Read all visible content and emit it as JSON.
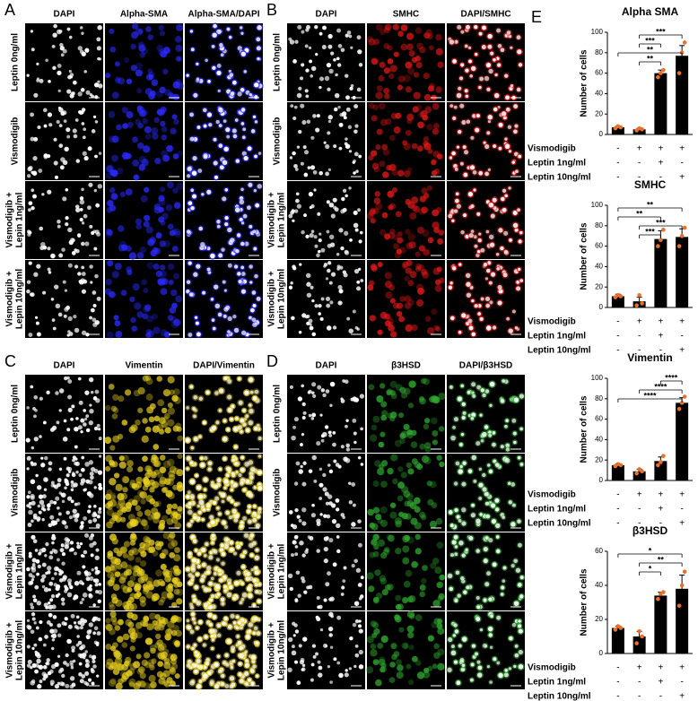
{
  "panels": [
    {
      "letter": "A",
      "marker_color": "#2a2aff",
      "columns": [
        "DAPI",
        "Alpha-SMA",
        "Alpha-SMA/DAPI"
      ],
      "rows": [
        [
          "Leptin 0ng/ml"
        ],
        [
          "Vismodigib"
        ],
        [
          "Vismodigib +",
          "Lepin 1ng/ml"
        ],
        [
          "Vismodigib +",
          "Lepin 10ng/ml"
        ]
      ]
    },
    {
      "letter": "B",
      "marker_color": "#e01818",
      "columns": [
        "DAPI",
        "SMHC",
        "DAPI/SMHC"
      ],
      "rows": [
        [
          "Leptin 0ng/ml"
        ],
        [
          "Vismodigib"
        ],
        [
          "Vismodigib +",
          "Lepin 1ng/ml"
        ],
        [
          "Vismodigib +",
          "Lepin 10ng/ml"
        ]
      ]
    },
    {
      "letter": "C",
      "marker_color": "#e8d020",
      "columns": [
        "DAPI",
        "Vimentin",
        "DAPI/Vimentin"
      ],
      "rows": [
        [
          "Leptin 0ng/ml"
        ],
        [
          "Vismodigib"
        ],
        [
          "Vismodigib +",
          "Lepin 1ng/ml"
        ],
        [
          "Vismodigib +",
          "Lepin 10ng/ml"
        ]
      ]
    },
    {
      "letter": "D",
      "marker_color": "#2fa82f",
      "columns": [
        "DAPI",
        "β3HSD",
        "DAPI/β3HSD"
      ],
      "rows": [
        [
          "Leptin 0ng/ml"
        ],
        [
          "Vismodigib"
        ],
        [
          "Vismodigib +",
          "Lepin 1ng/ml"
        ],
        [
          "Vismodigib +",
          "Lepin 10ng/ml"
        ]
      ]
    }
  ],
  "panel_e": {
    "letter": "E"
  },
  "chart_data": [
    {
      "type": "bar",
      "title": "Alpha SMA",
      "y_label": "Number of cells",
      "color": "#000000",
      "point_color": "#e8702a",
      "ylim": [
        0,
        100
      ],
      "yticks": [
        0,
        20,
        40,
        60,
        80,
        100
      ],
      "values": [
        7,
        5,
        60,
        77
      ],
      "errors": [
        1,
        1,
        3,
        10
      ],
      "points": [
        [
          6,
          8,
          7
        ],
        [
          4,
          6,
          5
        ],
        [
          56,
          60,
          63
        ],
        [
          60,
          80,
          90
        ]
      ],
      "conditions": [
        {
          "label": "Vismodigib",
          "signs": [
            "-",
            "+",
            "+",
            "+"
          ]
        },
        {
          "label": "Leptin 1ng/ml",
          "signs": [
            "-",
            "-",
            "+",
            "-"
          ]
        },
        {
          "label": "Leptin 10ng/ml",
          "signs": [
            "-",
            "-",
            "-",
            "+"
          ]
        }
      ],
      "brackets": [
        {
          "label": "***",
          "from": 1,
          "to": 3
        },
        {
          "label": "***",
          "from": 1,
          "to": 2
        },
        {
          "label": "**",
          "from": 0,
          "to": 3
        },
        {
          "label": "**",
          "from": 1,
          "to": 2
        }
      ]
    },
    {
      "type": "bar",
      "title": "SMHC",
      "y_label": "Number of cells",
      "color": "#000000",
      "point_color": "#e8702a",
      "ylim": [
        0,
        100
      ],
      "yticks": [
        0,
        20,
        40,
        60,
        80,
        100
      ],
      "values": [
        11,
        6,
        67,
        69
      ],
      "errors": [
        2,
        4,
        8,
        8
      ],
      "points": [
        [
          10,
          12,
          11
        ],
        [
          2,
          12,
          4
        ],
        [
          60,
          66,
          76
        ],
        [
          60,
          70,
          78
        ]
      ],
      "conditions": [
        {
          "label": "Vismodigib",
          "signs": [
            "-",
            "+",
            "+",
            "+"
          ]
        },
        {
          "label": "Leptin 1ng/ml",
          "signs": [
            "-",
            "-",
            "+",
            "-"
          ]
        },
        {
          "label": "Leptin 10ng/ml",
          "signs": [
            "-",
            "-",
            "-",
            "+"
          ]
        }
      ],
      "brackets": [
        {
          "label": "**",
          "from": 0,
          "to": 3
        },
        {
          "label": "**",
          "from": 0,
          "to": 2
        },
        {
          "label": "***",
          "from": 1,
          "to": 3
        },
        {
          "label": "***",
          "from": 1,
          "to": 2
        }
      ]
    },
    {
      "type": "bar",
      "title": "Vimentin",
      "y_label": "Number of cells",
      "color": "#000000",
      "point_color": "#e8702a",
      "ylim": [
        0,
        100
      ],
      "yticks": [
        0,
        20,
        40,
        60,
        80,
        100
      ],
      "values": [
        15,
        9,
        19,
        76
      ],
      "errors": [
        1,
        2,
        4,
        5
      ],
      "points": [
        [
          14,
          16,
          15
        ],
        [
          7,
          11,
          9
        ],
        [
          15,
          18,
          24
        ],
        [
          70,
          76,
          82
        ]
      ],
      "conditions": [
        {
          "label": "Vismodigib",
          "signs": [
            "-",
            "+",
            "+",
            "+"
          ]
        },
        {
          "label": "Leptin 1ng/ml",
          "signs": [
            "-",
            "-",
            "+",
            "-"
          ]
        },
        {
          "label": "Leptin 10ng/ml",
          "signs": [
            "-",
            "-",
            "-",
            "+"
          ]
        }
      ],
      "brackets": [
        {
          "label": "****",
          "from": 2,
          "to": 3
        },
        {
          "label": "****",
          "from": 1,
          "to": 3
        },
        {
          "label": "****",
          "from": 0,
          "to": 3
        }
      ]
    },
    {
      "type": "bar",
      "title": "β3HSD",
      "y_label": "Number of cells",
      "color": "#000000",
      "point_color": "#e8702a",
      "ylim": [
        0,
        60
      ],
      "yticks": [
        0,
        20,
        40,
        60
      ],
      "values": [
        15,
        10,
        34,
        38
      ],
      "errors": [
        1,
        3,
        2,
        8
      ],
      "points": [
        [
          14,
          16,
          15
        ],
        [
          6,
          13,
          10
        ],
        [
          32,
          35,
          36
        ],
        [
          28,
          40,
          48
        ]
      ],
      "conditions": [
        {
          "label": "Vismodigib",
          "signs": [
            "-",
            "+",
            "+",
            "+"
          ]
        },
        {
          "label": "Leptin 1ng/ml",
          "signs": [
            "-",
            "-",
            "+",
            "-"
          ]
        },
        {
          "label": "Leptin 10ng/ml",
          "signs": [
            "-",
            "-",
            "-",
            "+"
          ]
        }
      ],
      "brackets": [
        {
          "label": "*",
          "from": 0,
          "to": 3
        },
        {
          "label": "**",
          "from": 1,
          "to": 3
        },
        {
          "label": "*",
          "from": 1,
          "to": 2
        }
      ]
    }
  ]
}
